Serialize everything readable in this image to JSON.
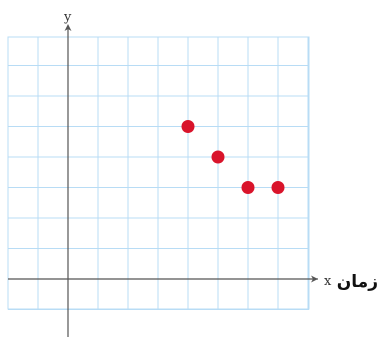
{
  "chart_data": {
    "type": "scatter",
    "x_axis_letter": "x",
    "y_axis_letter": "y",
    "xlabel": "زمان",
    "xlim": [
      -2,
      8
    ],
    "ylim": [
      -2,
      8
    ],
    "grid": true,
    "points": [
      {
        "x": 4,
        "y": 5
      },
      {
        "x": 5,
        "y": 4
      },
      {
        "x": 6,
        "y": 3
      },
      {
        "x": 7,
        "y": 3
      }
    ],
    "colors": {
      "grid": "#b8dcf5",
      "axis": "#555555",
      "point": "#d9142b"
    }
  }
}
